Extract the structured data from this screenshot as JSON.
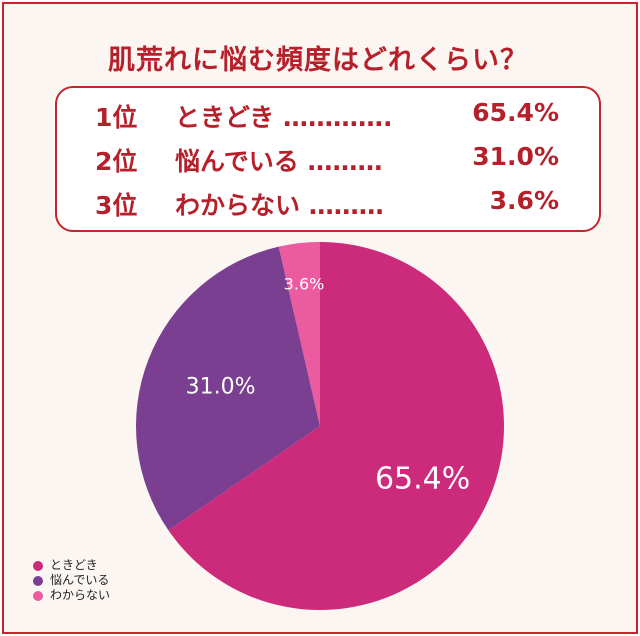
{
  "title": "肌荒れに悩む頻度はどれくらい？",
  "ranking": [
    {
      "rank": "1位",
      "label": "ときどき ………….",
      "value": "65.4%"
    },
    {
      "rank": "2位",
      "label": "悩んでいる ………",
      "value": "31.0%"
    },
    {
      "rank": "3位",
      "label": "わからない ………",
      "value": "3.6%"
    }
  ],
  "chart_data": {
    "type": "pie",
    "slices": [
      {
        "name": "ときどき",
        "value": 65.4,
        "label": "65.4%",
        "color": "#cc2a7b"
      },
      {
        "name": "悩んでいる",
        "value": 31.0,
        "label": "31.0%",
        "color": "#7b3f91"
      },
      {
        "name": "わからない",
        "value": 3.6,
        "label": "3.6%",
        "color": "#ea5b9f"
      }
    ],
    "legend": "bottom-left"
  },
  "colors": {
    "accent": "#c8242b",
    "title": "#b5202a"
  }
}
